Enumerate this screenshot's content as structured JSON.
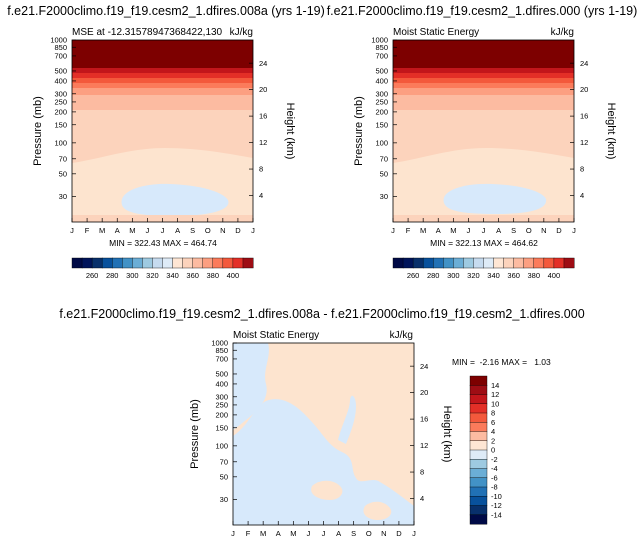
{
  "chart_data": [
    {
      "type": "heatmap",
      "panel": "left",
      "title": "f.e21.F2000climo.f19_f19.cesm2_1.dfires.008a (yrs 1-19)",
      "subtitle_left": "MSE at -12.31578947368422,130",
      "subtitle_right": "kJ/kg",
      "ylabel": "Pressure (mb)",
      "ylabel_right": "Height (km)",
      "x_ticks": [
        "J",
        "F",
        "M",
        "A",
        "M",
        "J",
        "J",
        "A",
        "S",
        "O",
        "N",
        "D",
        "J"
      ],
      "pressure_ticks": [
        "30",
        "50",
        "70",
        "100",
        "150",
        "200",
        "250",
        "300",
        "400",
        "500",
        "700",
        "850",
        "1000"
      ],
      "height_ticks": [
        "24",
        "20",
        "16",
        "12",
        "8",
        "4"
      ],
      "stats": "MIN = 322.43 MAX = 464.74",
      "min": 322.43,
      "max": 464.74,
      "levels": [
        250,
        260,
        270,
        280,
        290,
        300,
        310,
        320,
        330,
        340,
        350,
        360,
        370,
        380,
        390,
        400,
        410
      ],
      "colorbar_labels": [
        "260",
        "280",
        "300",
        "320",
        "340",
        "360",
        "380",
        "400"
      ],
      "colorbar_orientation": "horizontal"
    },
    {
      "type": "heatmap",
      "panel": "right",
      "title": "f.e21.F2000climo.f19_f19.cesm2_1.dfires.000 (yrs 1-19)",
      "subtitle_left": "Moist Static Energy",
      "subtitle_right": "kJ/kg",
      "ylabel": "Pressure (mb)",
      "ylabel_right": "Height (km)",
      "x_ticks": [
        "J",
        "F",
        "M",
        "A",
        "M",
        "J",
        "J",
        "A",
        "S",
        "O",
        "N",
        "D",
        "J"
      ],
      "pressure_ticks": [
        "30",
        "50",
        "70",
        "100",
        "150",
        "200",
        "250",
        "300",
        "400",
        "500",
        "700",
        "850",
        "1000"
      ],
      "height_ticks": [
        "24",
        "20",
        "16",
        "12",
        "8",
        "4"
      ],
      "stats": "MIN = 322.13 MAX = 464.62",
      "min": 322.13,
      "max": 464.62,
      "levels": [
        250,
        260,
        270,
        280,
        290,
        300,
        310,
        320,
        330,
        340,
        350,
        360,
        370,
        380,
        390,
        400,
        410
      ],
      "colorbar_labels": [
        "260",
        "280",
        "300",
        "320",
        "340",
        "360",
        "380",
        "400"
      ],
      "colorbar_orientation": "horizontal"
    },
    {
      "type": "heatmap",
      "panel": "difference",
      "title": "f.e21.F2000climo.f19_f19.cesm2_1.dfires.008a - f.e21.F2000climo.f19_f19.cesm2_1.dfires.000",
      "subtitle_left": "Moist Static Energy",
      "subtitle_right": "kJ/kg",
      "ylabel": "Pressure (mb)",
      "ylabel_right": "Height (km)",
      "x_ticks": [
        "J",
        "F",
        "M",
        "A",
        "M",
        "J",
        "J",
        "A",
        "S",
        "O",
        "N",
        "D",
        "J"
      ],
      "pressure_ticks": [
        "30",
        "50",
        "70",
        "100",
        "150",
        "200",
        "250",
        "300",
        "400",
        "500",
        "700",
        "850",
        "1000"
      ],
      "height_ticks": [
        "24",
        "20",
        "16",
        "12",
        "8",
        "4"
      ],
      "stats": "MIN =  -2.16 MAX =   1.03",
      "min": -2.16,
      "max": 1.03,
      "levels": [
        -14,
        -12,
        -10,
        -8,
        -6,
        -4,
        -2,
        0,
        2,
        4,
        6,
        8,
        10,
        12,
        14
      ],
      "colorbar_labels": [
        "14",
        "12",
        "10",
        "8",
        "6",
        "4",
        "2",
        "0",
        "-2",
        "-4",
        "-6",
        "-8",
        "-10",
        "-12",
        "-14"
      ],
      "colorbar_orientation": "vertical"
    }
  ],
  "colors": {
    "warm": [
      "#fee6d4",
      "#fcd3bc",
      "#fcbba1",
      "#fc9f81",
      "#fb7b5b",
      "#f3593c",
      "#e32f27",
      "#c2161b",
      "#9e0d14",
      "#7d0000"
    ],
    "cool": [
      "#deebf7",
      "#c6dbef",
      "#9ecae1",
      "#6baed6",
      "#4292c6",
      "#2171b5",
      "#08519c",
      "#08306b",
      "#00145a",
      "#000a46"
    ],
    "diff_bg": "#fde4cf",
    "diff_blue": "#d7e9fb"
  }
}
